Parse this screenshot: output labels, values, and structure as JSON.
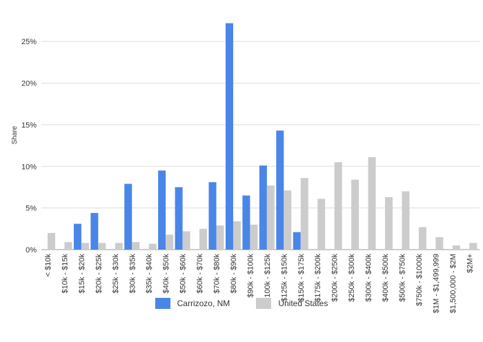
{
  "chart_data": {
    "type": "bar",
    "ylabel": "Share",
    "ylim": [
      0,
      27.5
    ],
    "yticks": [
      "0%",
      "5%",
      "10%",
      "15%",
      "20%",
      "25%"
    ],
    "ytick_values": [
      0,
      5,
      10,
      15,
      20,
      25
    ],
    "grid": true,
    "legend_position": "bottom",
    "categories": [
      "< $10k",
      "$10k - $15k",
      "$15k - $20k",
      "$20k - $25k",
      "$25k - $30k",
      "$30k - $35k",
      "$35k - $40k",
      "$40k - $50k",
      "$50k - $60k",
      "$60k - $70k",
      "$70k - $80k",
      "$80k - $90k",
      "$90k - $100k",
      "$100k - $125k",
      "$125k - $150k",
      "$150k - $175k",
      "$175k - $200k",
      "$200k - $250k",
      "$250k - $300k",
      "$300k - $400k",
      "$400k - $500k",
      "$500k - $750k",
      "$750k - $1000k",
      "$1M - $1,499,999",
      "$1,500,000 - $2M",
      "$2M+"
    ],
    "series": [
      {
        "name": "Carrizozo, NM",
        "color": "#4a86e8",
        "values": [
          0,
          0,
          3.1,
          4.4,
          0,
          7.9,
          0,
          9.5,
          7.5,
          0,
          8.1,
          27.2,
          6.5,
          10.1,
          14.3,
          2.1,
          0,
          0,
          0,
          0,
          0,
          0,
          0,
          0,
          0,
          0
        ]
      },
      {
        "name": "United States",
        "color": "#cccccc",
        "values": [
          2.0,
          0.9,
          0.8,
          0.8,
          0.8,
          0.9,
          0.7,
          1.8,
          2.2,
          2.5,
          2.9,
          3.4,
          3.0,
          7.7,
          7.1,
          8.6,
          6.1,
          10.5,
          8.4,
          11.1,
          6.3,
          7.0,
          2.7,
          1.5,
          0.5,
          0.8
        ]
      }
    ]
  }
}
